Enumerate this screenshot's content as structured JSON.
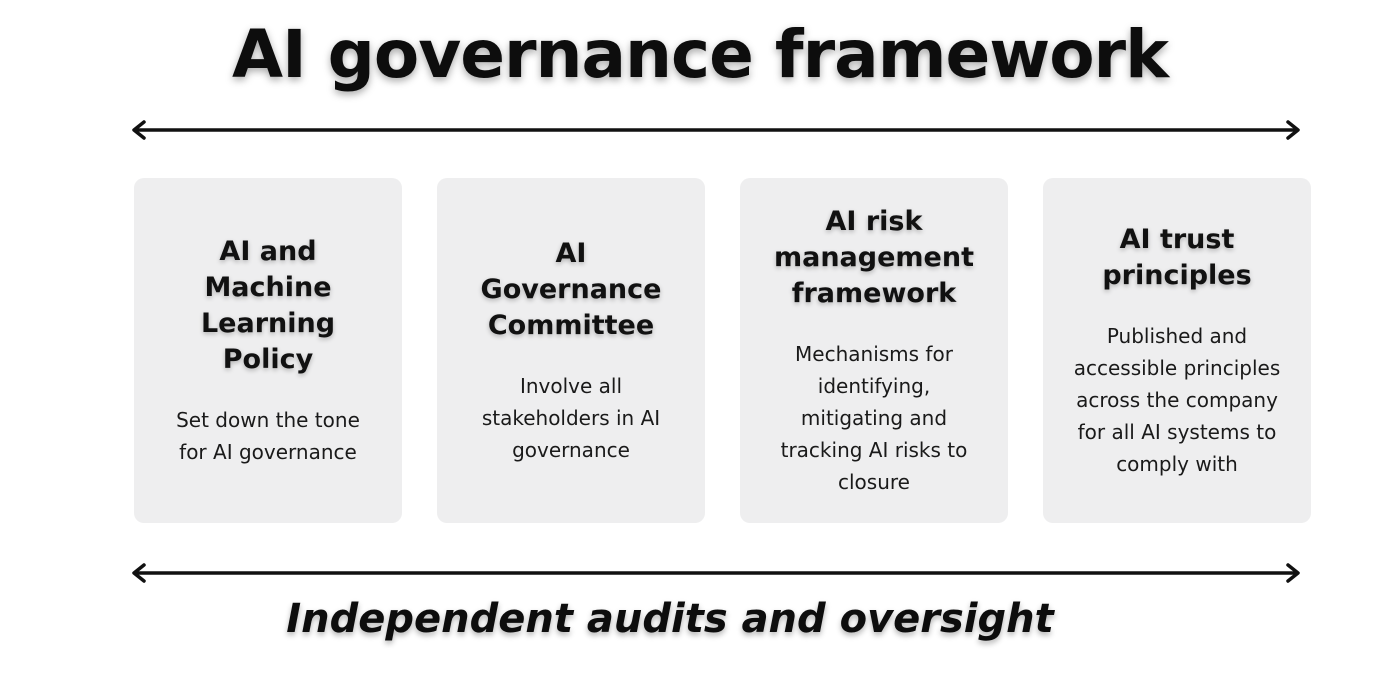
{
  "title": "AI governance framework",
  "footer": "Independent audits and oversight",
  "colors": {
    "card_background": "#eeeeef",
    "text": "#111111",
    "arrow": "#111111"
  },
  "cards": [
    {
      "heading": "AI and\nMachine\nLearning\nPolicy",
      "body": "Set down the tone\nfor AI governance"
    },
    {
      "heading": "AI\nGovernance\nCommittee",
      "body": "Involve all\nstakeholders in AI\ngovernance"
    },
    {
      "heading": "AI risk\nmanagement\nframework",
      "body": "Mechanisms for\nidentifying,\nmitigating and\ntracking AI risks to\nclosure"
    },
    {
      "heading": "AI trust\nprinciples",
      "body": "Published and\naccessible principles\nacross the company\nfor all AI systems to\ncomply with"
    }
  ]
}
